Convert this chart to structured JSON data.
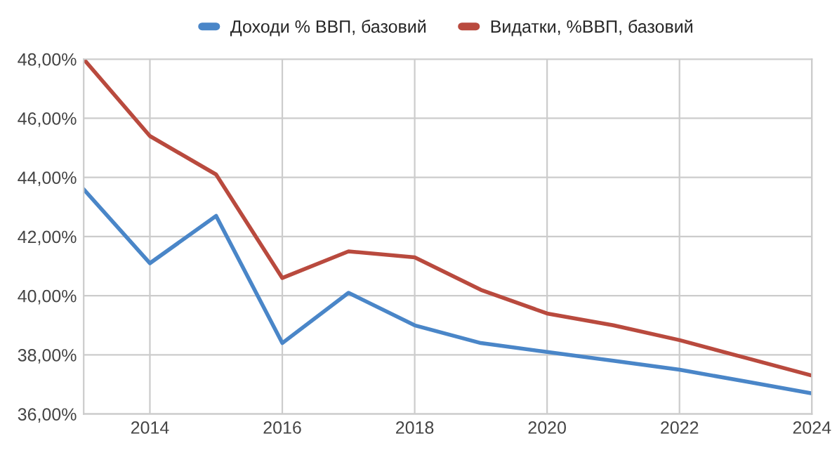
{
  "chart_data": {
    "type": "line",
    "x": [
      2013,
      2014,
      2015,
      2016,
      2017,
      2018,
      2019,
      2020,
      2021,
      2022,
      2023,
      2024
    ],
    "series": [
      {
        "name": "Доходи % ВВП, базовий",
        "color": "#4a86c8",
        "values": [
          43.6,
          41.1,
          42.7,
          38.4,
          40.1,
          39.0,
          38.4,
          38.1,
          37.8,
          37.5,
          37.1,
          36.7
        ]
      },
      {
        "name": "Видатки, %ВВП, базовий",
        "color": "#b94a3e",
        "values": [
          48.0,
          45.4,
          44.1,
          40.6,
          41.5,
          41.3,
          40.2,
          39.4,
          39.0,
          38.5,
          37.9,
          37.3
        ]
      }
    ],
    "xlim": [
      2013,
      2024
    ],
    "xticks": [
      2014,
      2016,
      2018,
      2020,
      2022,
      2024
    ],
    "ylim": [
      36,
      48
    ],
    "yticks": [
      {
        "value": 36,
        "label": "36,00%"
      },
      {
        "value": 38,
        "label": "38,00%"
      },
      {
        "value": 40,
        "label": "40,00%"
      },
      {
        "value": 42,
        "label": "42,00%"
      },
      {
        "value": 44,
        "label": "44,00%"
      },
      {
        "value": 46,
        "label": "46,00%"
      },
      {
        "value": 48,
        "label": "48,00%"
      }
    ],
    "grid": true,
    "legend": "top",
    "marker": "none",
    "line_style": "solid"
  }
}
